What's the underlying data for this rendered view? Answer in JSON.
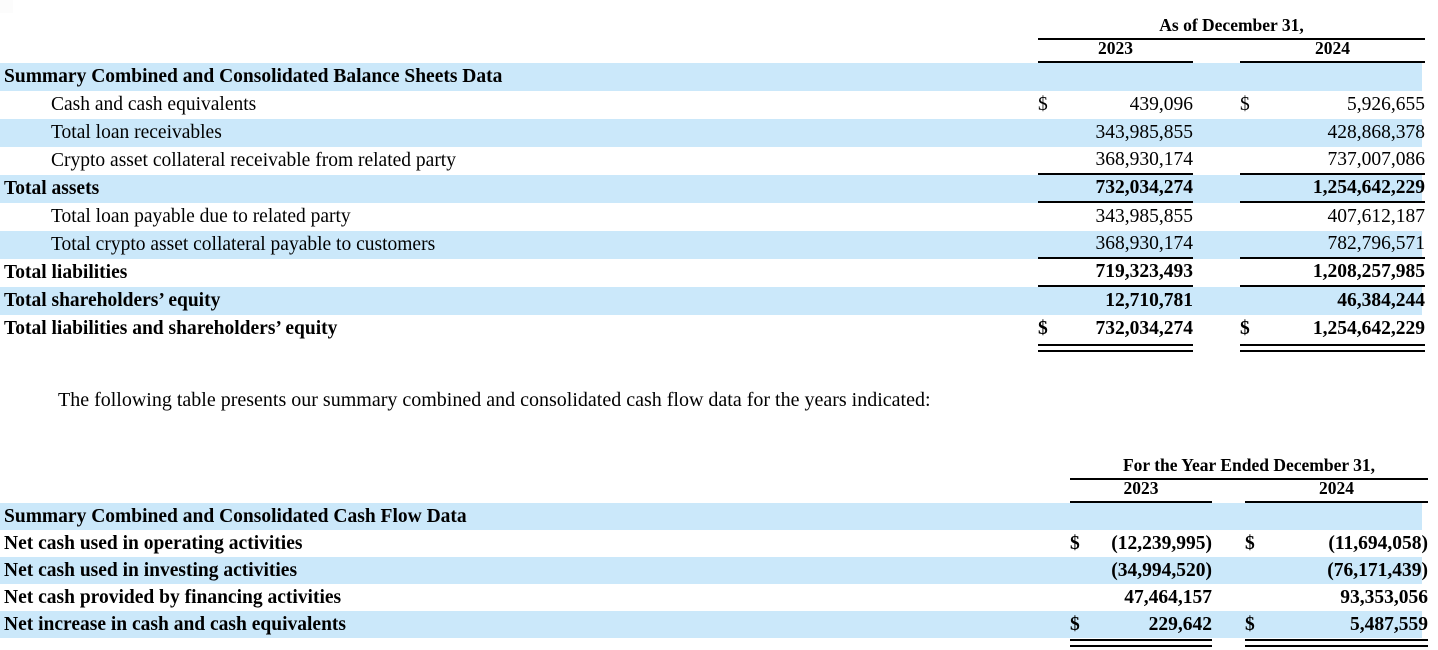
{
  "page": {
    "background": "#ffffff",
    "stripe_color": "#cbe8fa",
    "rule_color": "#000000",
    "corner_square_color": "#fcfcfc"
  },
  "paragraph": "The following table presents our summary combined and consolidated cash flow data for the years indicated:",
  "balance_table": {
    "header": {
      "title": "As of December 31,",
      "col_2023": "2023",
      "col_2024": "2024"
    },
    "rows": [
      {
        "label": "Summary Combined and Consolidated Balance Sheets Data",
        "d1": "",
        "v1": "",
        "d2": "",
        "v2": ""
      },
      {
        "label": "Cash and cash equivalents",
        "d1": "$",
        "v1": "439,096",
        "d2": "$",
        "v2": "5,926,655"
      },
      {
        "label": "Total loan receivables",
        "d1": "",
        "v1": "343,985,855",
        "d2": "",
        "v2": "428,868,378"
      },
      {
        "label": "Crypto asset collateral receivable from related party",
        "d1": "",
        "v1": "368,930,174",
        "d2": "",
        "v2": "737,007,086"
      },
      {
        "label": "Total assets",
        "d1": "",
        "v1": "732,034,274",
        "d2": "",
        "v2": "1,254,642,229"
      },
      {
        "label": "Total loan payable due to related party",
        "d1": "",
        "v1": "343,985,855",
        "d2": "",
        "v2": "407,612,187"
      },
      {
        "label": "Total crypto asset collateral payable to customers",
        "d1": "",
        "v1": "368,930,174",
        "d2": "",
        "v2": "782,796,571"
      },
      {
        "label": "Total liabilities",
        "d1": "",
        "v1": "719,323,493",
        "d2": "",
        "v2": "1,208,257,985"
      },
      {
        "label": "Total shareholders’ equity",
        "d1": "",
        "v1": "12,710,781",
        "d2": "",
        "v2": "46,384,244"
      },
      {
        "label": "Total liabilities and shareholders’ equity",
        "d1": "$",
        "v1": "732,034,274",
        "d2": "$",
        "v2": "1,254,642,229"
      }
    ]
  },
  "cashflow_table": {
    "header": {
      "title": "For the Year Ended December 31,",
      "col_2023": "2023",
      "col_2024": "2024"
    },
    "rows": [
      {
        "label": "Summary Combined and Consolidated Cash Flow Data",
        "d1": "",
        "v1": "",
        "d2": "",
        "v2": ""
      },
      {
        "label": "Net cash used in operating activities",
        "d1": "$",
        "v1": "(12,239,995)",
        "d2": "$",
        "v2": "(11,694,058)"
      },
      {
        "label": "Net cash used in investing activities",
        "d1": "",
        "v1": "(34,994,520)",
        "d2": "",
        "v2": "(76,171,439)"
      },
      {
        "label": "Net cash provided by financing activities",
        "d1": "",
        "v1": "47,464,157",
        "d2": "",
        "v2": "93,353,056"
      },
      {
        "label": "Net increase in cash and cash equivalents",
        "d1": "$",
        "v1": "229,642",
        "d2": "$",
        "v2": "5,487,559"
      }
    ]
  }
}
